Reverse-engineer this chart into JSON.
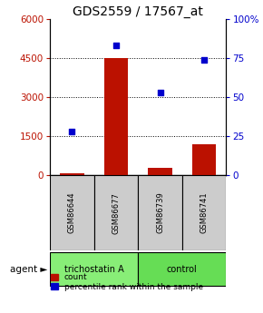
{
  "title": "GDS2559 / 17567_at",
  "samples": [
    "GSM86644",
    "GSM86677",
    "GSM86739",
    "GSM86741"
  ],
  "bar_values": [
    90,
    4480,
    270,
    1180
  ],
  "dot_values": [
    28,
    83,
    53,
    74
  ],
  "bar_color": "#bb1100",
  "dot_color": "#0000cc",
  "ylim_left": [
    0,
    6000
  ],
  "ylim_right": [
    0,
    100
  ],
  "yticks_left": [
    0,
    1500,
    3000,
    4500,
    6000
  ],
  "yticks_right": [
    0,
    25,
    50,
    75,
    100
  ],
  "ytick_labels_right": [
    "0",
    "25",
    "50",
    "75",
    "100%"
  ],
  "gridlines": [
    1500,
    3000,
    4500
  ],
  "groups": [
    {
      "label": "trichostatin A",
      "samples": [
        0,
        1
      ],
      "color": "#88ee77"
    },
    {
      "label": "control",
      "samples": [
        2,
        3
      ],
      "color": "#66dd55"
    }
  ],
  "agent_label": "agent",
  "legend_count_label": "count",
  "legend_pct_label": "percentile rank within the sample",
  "bg_color": "#ffffff",
  "plot_bg": "#ffffff",
  "sample_box_color": "#cccccc",
  "title_fontsize": 10,
  "tick_fontsize": 7.5,
  "label_fontsize": 8
}
